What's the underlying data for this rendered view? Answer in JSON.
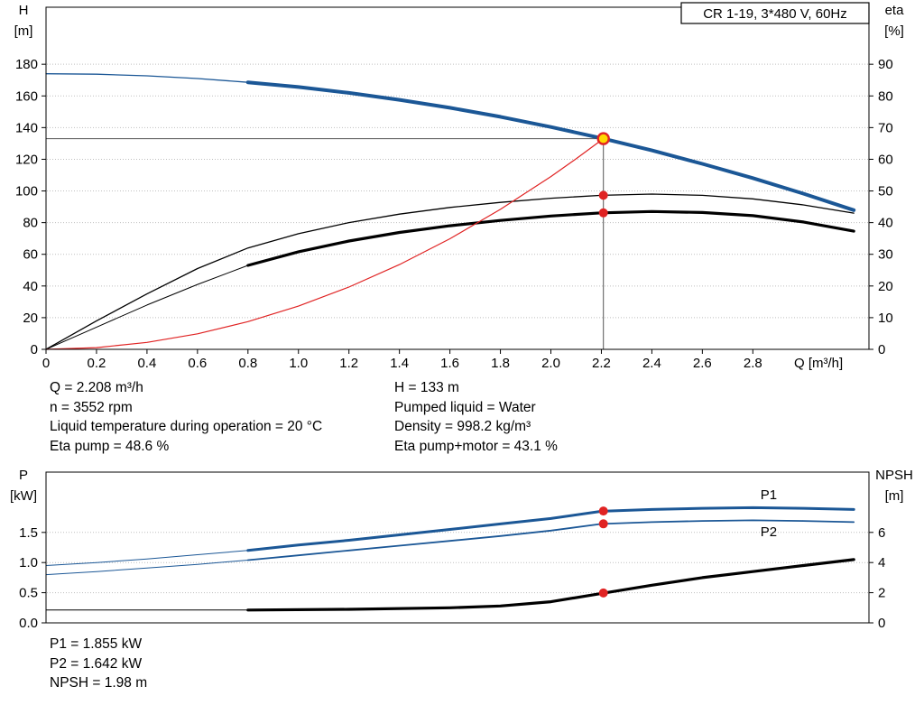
{
  "colors": {
    "curve_blue": "#1b5796",
    "curve_black": "#000000",
    "system_red": "#e02323",
    "marker_red": "#e02323",
    "marker_yellow": "#ffd800",
    "ref_line": "#555555",
    "grid": "#bfbfbf"
  },
  "info_top": {
    "left": [
      "Q = 2.208 m³/h",
      "n = 3552 rpm",
      "Liquid temperature during operation = 20 °C",
      "Eta pump = 48.6 %"
    ],
    "right": [
      "H = 133 m",
      "Pumped liquid = Water",
      "Density = 998.2 kg/m³",
      "Eta pump+motor = 43.1 %"
    ]
  },
  "info_bottom": [
    "P1 = 1.855 kW",
    "P2 = 1.642 kW",
    "NPSH = 1.98 m"
  ],
  "chart_data": [
    {
      "id": "hq-eta-chart",
      "type": "line",
      "title": "CR 1-19, 3*480 V, 60Hz",
      "x": {
        "label": "Q [m³/h]",
        "min": 0,
        "max": 3.26,
        "ticks": [
          [
            0,
            "0"
          ],
          [
            0.2,
            "0.2"
          ],
          [
            0.4,
            "0.4"
          ],
          [
            0.6,
            "0.6"
          ],
          [
            0.8,
            "0.8"
          ],
          [
            1,
            "1.0"
          ],
          [
            1.2,
            "1.2"
          ],
          [
            1.4,
            "1.4"
          ],
          [
            1.6,
            "1.6"
          ],
          [
            1.8,
            "1.8"
          ],
          [
            2,
            "2.0"
          ],
          [
            2.2,
            "2.2"
          ],
          [
            2.4,
            "2.4"
          ],
          [
            2.6,
            "2.6"
          ],
          [
            2.8,
            "2.8"
          ]
        ]
      },
      "y_left": {
        "label": "H",
        "unit": "[m]",
        "min": 0,
        "max": 216,
        "ticks": [
          [
            0,
            "0"
          ],
          [
            20,
            "20"
          ],
          [
            40,
            "40"
          ],
          [
            60,
            "60"
          ],
          [
            80,
            "80"
          ],
          [
            100,
            "100"
          ],
          [
            120,
            "120"
          ],
          [
            140,
            "140"
          ],
          [
            160,
            "160"
          ],
          [
            180,
            "180"
          ]
        ]
      },
      "y_right": {
        "label": "eta",
        "unit": "[%]",
        "min": 0,
        "max": 108,
        "ticks": [
          [
            0,
            "0"
          ],
          [
            10,
            "10"
          ],
          [
            20,
            "20"
          ],
          [
            30,
            "30"
          ],
          [
            40,
            "40"
          ],
          [
            50,
            "50"
          ],
          [
            60,
            "60"
          ],
          [
            70,
            "70"
          ],
          [
            80,
            "80"
          ],
          [
            90,
            "90"
          ]
        ]
      },
      "duty_point": {
        "q": 2.208,
        "h": 133
      },
      "series": [
        {
          "name": "head-curve-thin",
          "axis": "left",
          "color": "#1b5796",
          "width": 1.3,
          "points": [
            [
              0,
              174
            ],
            [
              0.2,
              173.7
            ],
            [
              0.4,
              172.7
            ],
            [
              0.6,
              171
            ],
            [
              0.8,
              168.6
            ]
          ]
        },
        {
          "name": "head-curve",
          "axis": "left",
          "color": "#1b5796",
          "width": 4,
          "points": [
            [
              0.8,
              168.6
            ],
            [
              1,
              165.6
            ],
            [
              1.2,
              161.9
            ],
            [
              1.4,
              157.5
            ],
            [
              1.6,
              152.5
            ],
            [
              1.8,
              146.8
            ],
            [
              2,
              140.4
            ],
            [
              2.2,
              133.3
            ],
            [
              2.4,
              125.6
            ],
            [
              2.6,
              117.1
            ],
            [
              2.8,
              108.1
            ],
            [
              3,
              98.3
            ],
            [
              3.2,
              87.9
            ]
          ]
        },
        {
          "name": "eta-pump-curve",
          "axis": "right",
          "color": "#000000",
          "width": 1.3,
          "points": [
            [
              0,
              0
            ],
            [
              0.2,
              9
            ],
            [
              0.4,
              17.5
            ],
            [
              0.6,
              25.5
            ],
            [
              0.8,
              32
            ],
            [
              1,
              36.5
            ],
            [
              1.2,
              40
            ],
            [
              1.4,
              42.7
            ],
            [
              1.6,
              44.8
            ],
            [
              1.8,
              46.4
            ],
            [
              2,
              47.7
            ],
            [
              2.2,
              48.6
            ],
            [
              2.4,
              49
            ],
            [
              2.6,
              48.6
            ],
            [
              2.8,
              47.5
            ],
            [
              3,
              45.6
            ],
            [
              3.2,
              43
            ]
          ]
        },
        {
          "name": "eta-pump-motor-curve-thin",
          "axis": "right",
          "color": "#000000",
          "width": 1,
          "points": [
            [
              0,
              0
            ],
            [
              0.2,
              7
            ],
            [
              0.4,
              14
            ],
            [
              0.6,
              20.5
            ],
            [
              0.8,
              26.5
            ]
          ]
        },
        {
          "name": "eta-pump-motor-curve",
          "axis": "right",
          "color": "#000000",
          "width": 3.2,
          "points": [
            [
              0.8,
              26.5
            ],
            [
              1,
              30.8
            ],
            [
              1.2,
              34.2
            ],
            [
              1.4,
              36.9
            ],
            [
              1.6,
              39
            ],
            [
              1.8,
              40.7
            ],
            [
              2,
              42.1
            ],
            [
              2.2,
              43.1
            ],
            [
              2.4,
              43.5
            ],
            [
              2.6,
              43.2
            ],
            [
              2.8,
              42.2
            ],
            [
              3,
              40.2
            ],
            [
              3.2,
              37.3
            ]
          ]
        },
        {
          "name": "system-resistance-curve",
          "axis": "left",
          "color": "#e02323",
          "width": 1.2,
          "points": [
            [
              0,
              0
            ],
            [
              0.2,
              1.1
            ],
            [
              0.4,
              4.4
            ],
            [
              0.6,
              9.8
            ],
            [
              0.8,
              17.5
            ],
            [
              1,
              27.3
            ],
            [
              1.2,
              39.3
            ],
            [
              1.4,
              53.5
            ],
            [
              1.6,
              69.8
            ],
            [
              1.8,
              88.4
            ],
            [
              2,
              109.1
            ],
            [
              2.1,
              120.3
            ],
            [
              2.208,
              133
            ]
          ]
        }
      ],
      "markers": [
        {
          "x": 2.208,
          "y": 48.6,
          "axis": "right",
          "style": "dot"
        },
        {
          "x": 2.208,
          "y": 43.1,
          "axis": "right",
          "style": "dot"
        },
        {
          "x": 2.208,
          "y": 133,
          "axis": "left",
          "style": "duty"
        }
      ]
    },
    {
      "id": "power-npsh-chart",
      "type": "line",
      "title": "",
      "x": {
        "label": "",
        "min": 0,
        "max": 3.26,
        "ticks": []
      },
      "y_left": {
        "label": "P",
        "unit": "[kW]",
        "min": 0,
        "max": 2.5,
        "ticks": [
          [
            0,
            "0.0"
          ],
          [
            0.5,
            "0.5"
          ],
          [
            1,
            "1.0"
          ],
          [
            1.5,
            "1.5"
          ]
        ]
      },
      "y_right": {
        "label": "NPSH",
        "unit": "[m]",
        "min": 0,
        "max": 10,
        "ticks": [
          [
            0,
            "0"
          ],
          [
            2,
            "2"
          ],
          [
            4,
            "4"
          ],
          [
            6,
            "6"
          ]
        ]
      },
      "series": [
        {
          "name": "p1-curve-thin",
          "axis": "left",
          "color": "#1b5796",
          "width": 1,
          "points": [
            [
              0,
              0.95
            ],
            [
              0.2,
              1
            ],
            [
              0.4,
              1.06
            ],
            [
              0.6,
              1.13
            ],
            [
              0.8,
              1.2
            ]
          ]
        },
        {
          "name": "p1-curve",
          "axis": "left",
          "color": "#1b5796",
          "width": 3,
          "points": [
            [
              0.8,
              1.2
            ],
            [
              1,
              1.29
            ],
            [
              1.2,
              1.37
            ],
            [
              1.4,
              1.46
            ],
            [
              1.6,
              1.55
            ],
            [
              1.8,
              1.64
            ],
            [
              2,
              1.73
            ],
            [
              2.2,
              1.85
            ],
            [
              2.4,
              1.88
            ],
            [
              2.6,
              1.9
            ],
            [
              2.8,
              1.91
            ],
            [
              3,
              1.9
            ],
            [
              3.2,
              1.88
            ]
          ]
        },
        {
          "name": "p2-curve-thin",
          "axis": "left",
          "color": "#1b5796",
          "width": 1,
          "points": [
            [
              0,
              0.8
            ],
            [
              0.2,
              0.85
            ],
            [
              0.4,
              0.91
            ],
            [
              0.6,
              0.97
            ],
            [
              0.8,
              1.04
            ]
          ]
        },
        {
          "name": "p2-curve",
          "axis": "left",
          "color": "#1b5796",
          "width": 1.8,
          "points": [
            [
              0.8,
              1.04
            ],
            [
              1,
              1.12
            ],
            [
              1.2,
              1.2
            ],
            [
              1.4,
              1.28
            ],
            [
              1.6,
              1.36
            ],
            [
              1.8,
              1.44
            ],
            [
              2,
              1.53
            ],
            [
              2.2,
              1.64
            ],
            [
              2.4,
              1.67
            ],
            [
              2.6,
              1.69
            ],
            [
              2.8,
              1.7
            ],
            [
              3,
              1.69
            ],
            [
              3.2,
              1.67
            ]
          ]
        },
        {
          "name": "npsh-curve-thin",
          "axis": "right",
          "color": "#000000",
          "width": 1,
          "points": [
            [
              0,
              0.85
            ],
            [
              0.4,
              0.85
            ],
            [
              0.8,
              0.85
            ]
          ]
        },
        {
          "name": "npsh-curve",
          "axis": "right",
          "color": "#000000",
          "width": 3.2,
          "points": [
            [
              0.8,
              0.85
            ],
            [
              1.2,
              0.9
            ],
            [
              1.6,
              1
            ],
            [
              1.8,
              1.12
            ],
            [
              2,
              1.4
            ],
            [
              2.2,
              1.95
            ],
            [
              2.4,
              2.5
            ],
            [
              2.6,
              3
            ],
            [
              2.8,
              3.4
            ],
            [
              3,
              3.8
            ],
            [
              3.2,
              4.2
            ]
          ]
        }
      ],
      "series_labels": [
        {
          "text": "P1",
          "x": 2.83,
          "y": 2.05,
          "color": "#1b5796"
        },
        {
          "text": "P2",
          "x": 2.83,
          "y": 1.44,
          "color": "#1b5796"
        }
      ],
      "markers": [
        {
          "x": 2.208,
          "y": 1.855,
          "axis": "left",
          "style": "dot"
        },
        {
          "x": 2.208,
          "y": 1.642,
          "axis": "left",
          "style": "dot"
        },
        {
          "x": 2.208,
          "y": 1.98,
          "axis": "right",
          "style": "dot"
        }
      ]
    }
  ]
}
